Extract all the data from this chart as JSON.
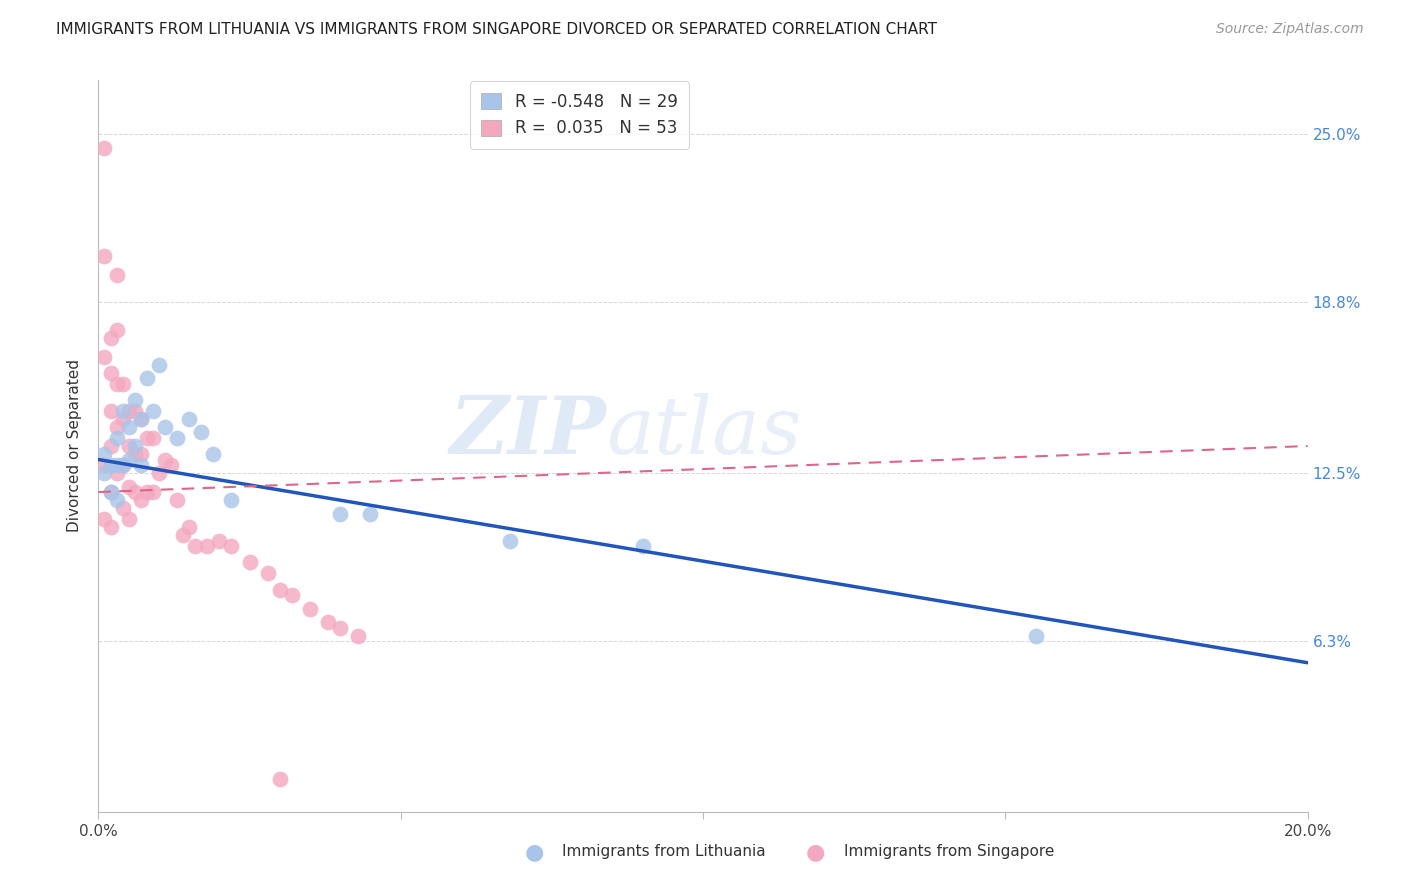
{
  "title": "IMMIGRANTS FROM LITHUANIA VS IMMIGRANTS FROM SINGAPORE DIVORCED OR SEPARATED CORRELATION CHART",
  "source": "Source: ZipAtlas.com",
  "ylabel": "Divorced or Separated",
  "xlim": [
    0.0,
    0.2
  ],
  "ylim": [
    0.0,
    0.27
  ],
  "xtick_positions": [
    0.0,
    0.05,
    0.1,
    0.15,
    0.2
  ],
  "xtick_labels": [
    "0.0%",
    "",
    "",
    "",
    "20.0%"
  ],
  "ytick_positions": [
    0.063,
    0.125,
    0.188,
    0.25
  ],
  "ytick_labels": [
    "6.3%",
    "12.5%",
    "18.8%",
    "25.0%"
  ],
  "lithuania_R": -0.548,
  "lithuania_N": 29,
  "singapore_R": 0.035,
  "singapore_N": 53,
  "lithuania_color": "#a8c4e8",
  "singapore_color": "#f4a8c0",
  "lithuania_line_color": "#2255bb",
  "singapore_line_color": "#dd6688",
  "watermark": "ZIPatlas",
  "lithuania_x": [
    0.001,
    0.001,
    0.002,
    0.002,
    0.003,
    0.003,
    0.003,
    0.004,
    0.004,
    0.005,
    0.005,
    0.006,
    0.006,
    0.007,
    0.007,
    0.008,
    0.009,
    0.01,
    0.011,
    0.013,
    0.015,
    0.017,
    0.019,
    0.022,
    0.04,
    0.045,
    0.068,
    0.09,
    0.155
  ],
  "lithuania_y": [
    0.125,
    0.132,
    0.128,
    0.118,
    0.138,
    0.128,
    0.115,
    0.148,
    0.128,
    0.142,
    0.13,
    0.152,
    0.135,
    0.145,
    0.128,
    0.16,
    0.148,
    0.165,
    0.142,
    0.138,
    0.145,
    0.14,
    0.132,
    0.115,
    0.11,
    0.11,
    0.1,
    0.098,
    0.065
  ],
  "singapore_x": [
    0.001,
    0.001,
    0.001,
    0.001,
    0.001,
    0.002,
    0.002,
    0.002,
    0.002,
    0.002,
    0.002,
    0.003,
    0.003,
    0.003,
    0.003,
    0.003,
    0.004,
    0.004,
    0.004,
    0.004,
    0.005,
    0.005,
    0.005,
    0.005,
    0.006,
    0.006,
    0.006,
    0.007,
    0.007,
    0.007,
    0.008,
    0.008,
    0.009,
    0.009,
    0.01,
    0.011,
    0.012,
    0.013,
    0.014,
    0.015,
    0.016,
    0.018,
    0.02,
    0.022,
    0.025,
    0.028,
    0.03,
    0.032,
    0.035,
    0.038,
    0.04,
    0.043,
    0.03
  ],
  "singapore_y": [
    0.245,
    0.205,
    0.168,
    0.128,
    0.108,
    0.175,
    0.162,
    0.148,
    0.135,
    0.118,
    0.105,
    0.198,
    0.178,
    0.158,
    0.142,
    0.125,
    0.158,
    0.145,
    0.128,
    0.112,
    0.148,
    0.135,
    0.12,
    0.108,
    0.148,
    0.132,
    0.118,
    0.145,
    0.132,
    0.115,
    0.138,
    0.118,
    0.138,
    0.118,
    0.125,
    0.13,
    0.128,
    0.115,
    0.102,
    0.105,
    0.098,
    0.098,
    0.1,
    0.098,
    0.092,
    0.088,
    0.082,
    0.08,
    0.075,
    0.07,
    0.068,
    0.065,
    0.012
  ]
}
